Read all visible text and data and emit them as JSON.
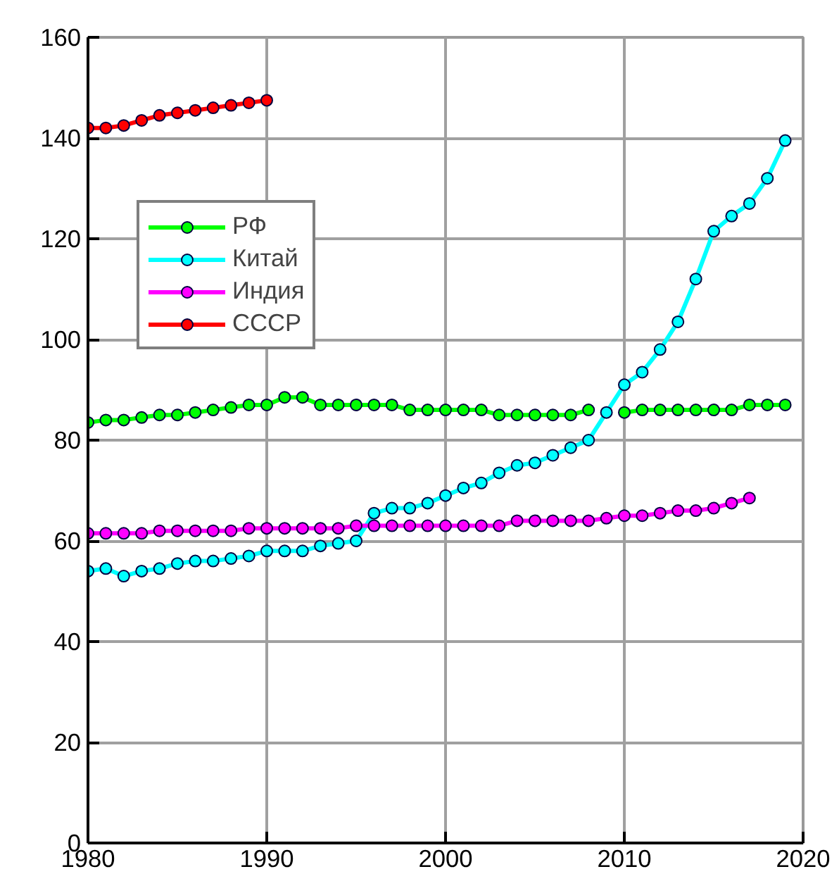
{
  "chart_data": {
    "type": "line",
    "marker": "circle",
    "grid": true,
    "legend": "top left",
    "xlim": [
      1980,
      2020
    ],
    "xticks": [
      1980,
      1990,
      2000,
      2010,
      2020
    ],
    "ylim": [
      0,
      160
    ],
    "yticks": [
      0,
      20,
      40,
      60,
      80,
      100,
      120,
      140,
      160
    ],
    "series": [
      {
        "name": "РФ",
        "color": "#00ff00",
        "x": [
          1980,
          1981,
          1982,
          1983,
          1984,
          1985,
          1986,
          1987,
          1988,
          1989,
          1990,
          1991,
          1992,
          1993,
          1994,
          1995,
          1996,
          1997,
          1998,
          1999,
          2000,
          2001,
          2002,
          2003,
          2004,
          2005,
          2006,
          2007,
          2008,
          2009,
          2010,
          2011,
          2012,
          2013,
          2014,
          2015,
          2016,
          2017,
          2018,
          2019
        ],
        "values": [
          83.5,
          84,
          84,
          84.5,
          85,
          85,
          85.5,
          86,
          86.5,
          87,
          87,
          88.5,
          88.5,
          87,
          87,
          87,
          87,
          87,
          86,
          86,
          86,
          86,
          86,
          85,
          85,
          85,
          85,
          85,
          86,
          null,
          85.5,
          86,
          86,
          86,
          86,
          86,
          86,
          87,
          87,
          87
        ]
      },
      {
        "name": "Китай",
        "color": "#00ffff",
        "x": [
          1980,
          1981,
          1982,
          1983,
          1984,
          1985,
          1986,
          1987,
          1988,
          1989,
          1990,
          1991,
          1992,
          1993,
          1994,
          1995,
          1996,
          1997,
          1998,
          1999,
          2000,
          2001,
          2002,
          2003,
          2004,
          2005,
          2006,
          2007,
          2008,
          2009,
          2010,
          2011,
          2012,
          2013,
          2014,
          2015,
          2016,
          2017,
          2018,
          2019
        ],
        "values": [
          54,
          54.5,
          53,
          54,
          54.5,
          55.5,
          56,
          56,
          56.5,
          57,
          58,
          58,
          58,
          59,
          59.5,
          60,
          65.5,
          66.5,
          66.5,
          67.5,
          69,
          70.5,
          71.5,
          73.5,
          75,
          75.5,
          77,
          78.5,
          80,
          85.5,
          91,
          93.5,
          98,
          103.5,
          112,
          121.5,
          124.5,
          127,
          132,
          139.5
        ]
      },
      {
        "name": "Индия",
        "color": "#ff00ff",
        "x": [
          1980,
          1981,
          1982,
          1983,
          1984,
          1985,
          1986,
          1987,
          1988,
          1989,
          1990,
          1991,
          1992,
          1993,
          1994,
          1995,
          1996,
          1997,
          1998,
          1999,
          2000,
          2001,
          2002,
          2003,
          2004,
          2005,
          2006,
          2007,
          2008,
          2009,
          2010,
          2011,
          2012,
          2013,
          2014,
          2015,
          2016,
          2017
        ],
        "values": [
          61.5,
          61.5,
          61.5,
          61.5,
          62,
          62,
          62,
          62,
          62,
          62.5,
          62.5,
          62.5,
          62.5,
          62.5,
          62.5,
          63,
          63,
          63,
          63,
          63,
          63,
          63,
          63,
          63,
          64,
          64,
          64,
          64,
          64,
          64.5,
          65,
          65,
          65.5,
          66,
          66,
          66.5,
          67.5,
          68.5
        ]
      },
      {
        "name": "СССР",
        "color": "#ff0000",
        "x": [
          1980,
          1981,
          1982,
          1983,
          1984,
          1985,
          1986,
          1987,
          1988,
          1989,
          1990
        ],
        "values": [
          142,
          142,
          142.5,
          143.5,
          144.5,
          145,
          145.5,
          146,
          146.5,
          147,
          147.5
        ]
      }
    ]
  }
}
